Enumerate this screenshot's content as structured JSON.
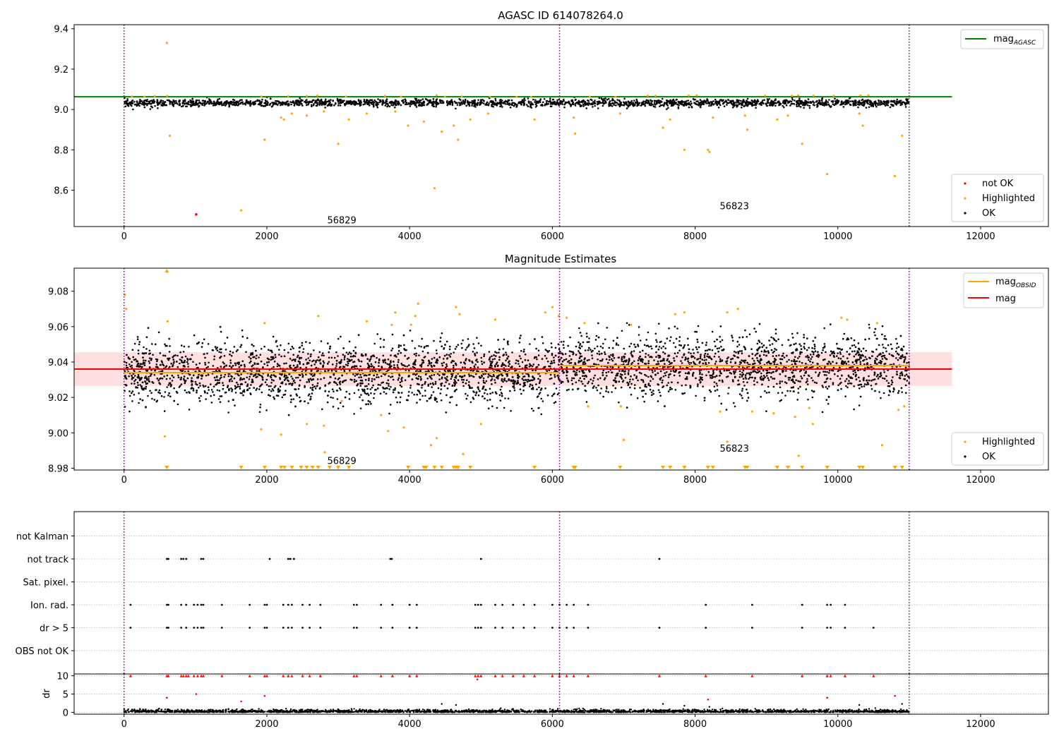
{
  "figure_title": "AGASC ID 614078264.0",
  "colors": {
    "ok": "#000000",
    "highlighted": "#ffa500",
    "not_ok": "#ff0000",
    "agasc_line": "#008000",
    "mag_line": "#ff0000",
    "obsid_line": "#ffa500",
    "band": "#ffc0c0",
    "vline": "#800080"
  },
  "chart_data": [
    {
      "id": "top",
      "type": "scatter",
      "title": "AGASC ID 614078264.0",
      "xlim": [
        -700,
        12950
      ],
      "ylim": [
        8.42,
        9.42
      ],
      "xticks": [
        0,
        2000,
        4000,
        6000,
        8000,
        10000,
        12000
      ],
      "xticklabels": [
        "0",
        "2000",
        "4000",
        "6000",
        "8000",
        "10000",
        "12000"
      ],
      "yticks": [
        8.6,
        8.8,
        9.0,
        9.2,
        9.4
      ],
      "yticklabels": [
        "8.6",
        "8.8",
        "9.0",
        "9.2",
        "9.4"
      ],
      "vlines": [
        0,
        6100,
        11000
      ],
      "obsid_labels": [
        {
          "text": "56829",
          "x": 3050,
          "y": 8.45
        },
        {
          "text": "56823",
          "x": 8550,
          "y": 8.52
        }
      ],
      "mag_agasc": 9.063,
      "mag_agasc_x": [
        -700,
        11600
      ],
      "ok_band": {
        "center": 9.032,
        "spread": 0.026
      },
      "highlighted": [
        [
          600,
          9.33
        ],
        [
          640,
          8.87
        ],
        [
          1970,
          8.85
        ],
        [
          1640,
          8.5
        ],
        [
          2200,
          8.96
        ],
        [
          2240,
          8.95
        ],
        [
          2350,
          8.98
        ],
        [
          2560,
          8.97
        ],
        [
          3000,
          8.83
        ],
        [
          3150,
          8.95
        ],
        [
          3800,
          8.99
        ],
        [
          3980,
          8.92
        ],
        [
          4200,
          8.94
        ],
        [
          4350,
          8.61
        ],
        [
          4450,
          8.89
        ],
        [
          4620,
          8.92
        ],
        [
          4680,
          8.85
        ],
        [
          4850,
          8.95
        ],
        [
          5750,
          8.95
        ],
        [
          6300,
          8.96
        ],
        [
          6320,
          8.88
        ],
        [
          6950,
          8.98
        ],
        [
          7550,
          8.91
        ],
        [
          7650,
          8.95
        ],
        [
          7850,
          8.8
        ],
        [
          8180,
          8.8
        ],
        [
          8200,
          8.79
        ],
        [
          8250,
          8.96
        ],
        [
          8700,
          8.97
        ],
        [
          8730,
          8.9
        ],
        [
          9150,
          8.95
        ],
        [
          9300,
          8.97
        ],
        [
          9500,
          8.83
        ],
        [
          9850,
          8.68
        ],
        [
          10300,
          8.98
        ],
        [
          10350,
          8.92
        ],
        [
          10800,
          8.67
        ],
        [
          10900,
          8.87
        ],
        [
          2800,
          8.99
        ],
        [
          5100,
          8.98
        ],
        [
          3400,
          8.98
        ]
      ],
      "not_ok": [
        [
          1010,
          8.48
        ]
      ],
      "legend_upper": [
        {
          "label": "mag",
          "sub": "AGASC"
        }
      ],
      "legend_lower": [
        {
          "label": "not OK"
        },
        {
          "label": "Highlighted"
        },
        {
          "label": "OK"
        }
      ]
    },
    {
      "id": "mid",
      "type": "scatter",
      "title": "Magnitude Estimates",
      "xlim": [
        -700,
        12950
      ],
      "ylim": [
        8.979,
        9.093
      ],
      "xticks": [
        0,
        2000,
        4000,
        6000,
        8000,
        10000,
        12000
      ],
      "xticklabels": [
        "0",
        "2000",
        "4000",
        "6000",
        "8000",
        "10000",
        "12000"
      ],
      "yticks": [
        8.98,
        9.0,
        9.02,
        9.04,
        9.06,
        9.08
      ],
      "yticklabels": [
        "8.98",
        "9.00",
        "9.02",
        "9.04",
        "9.06",
        "9.08"
      ],
      "vlines": [
        0,
        6100,
        11000
      ],
      "obsid_labels": [
        {
          "text": "56829",
          "x": 3050,
          "y": 8.984
        },
        {
          "text": "56823",
          "x": 8550,
          "y": 8.991
        }
      ],
      "mag": 9.036,
      "mag_x": [
        -700,
        11600
      ],
      "mag_band": [
        9.0265,
        9.0455
      ],
      "obsid_mags": [
        {
          "x0": 0,
          "x1": 6100,
          "y": 9.034
        },
        {
          "x0": 6100,
          "x1": 11000,
          "y": 9.038
        }
      ],
      "ok_band": {
        "center": 9.034,
        "spread": 0.012
      },
      "highlighted": [
        [
          10,
          9.078
        ],
        [
          30,
          9.07
        ],
        [
          600,
          9.091
        ],
        [
          610,
          9.063
        ],
        [
          570,
          8.998
        ],
        [
          1970,
          9.062
        ],
        [
          1920,
          9.002
        ],
        [
          2200,
          8.999
        ],
        [
          2560,
          9.005
        ],
        [
          2720,
          9.066
        ],
        [
          2810,
          8.989
        ],
        [
          2800,
          9.004
        ],
        [
          3050,
          9.018
        ],
        [
          3400,
          9.063
        ],
        [
          3600,
          9.01
        ],
        [
          3700,
          9.001
        ],
        [
          3750,
          9.061
        ],
        [
          3800,
          9.068
        ],
        [
          3920,
          9.003
        ],
        [
          4020,
          9.061
        ],
        [
          4080,
          9.066
        ],
        [
          4120,
          9.073
        ],
        [
          4300,
          8.993
        ],
        [
          4380,
          8.997
        ],
        [
          4650,
          9.071
        ],
        [
          4700,
          9.067
        ],
        [
          4750,
          8.988
        ],
        [
          5000,
          9.005
        ],
        [
          5200,
          9.064
        ],
        [
          5900,
          9.068
        ],
        [
          6000,
          9.071
        ],
        [
          6090,
          9.066
        ],
        [
          6200,
          9.065
        ],
        [
          6450,
          9.062
        ],
        [
          6500,
          9.015
        ],
        [
          6960,
          9.015
        ],
        [
          7000,
          8.996
        ],
        [
          7100,
          9.061
        ],
        [
          7720,
          9.067
        ],
        [
          7850,
          9.068
        ],
        [
          8350,
          9.012
        ],
        [
          8450,
          9.068
        ],
        [
          8450,
          8.995
        ],
        [
          8600,
          9.07
        ],
        [
          8800,
          9.012
        ],
        [
          9100,
          9.011
        ],
        [
          9400,
          9.009
        ],
        [
          9450,
          8.987
        ],
        [
          9600,
          9.014
        ],
        [
          9650,
          9.005
        ],
        [
          10050,
          9.065
        ],
        [
          10130,
          9.064
        ],
        [
          10550,
          9.062
        ],
        [
          10620,
          8.993
        ],
        [
          10850,
          9.013
        ],
        [
          10930,
          9.015
        ]
      ],
      "below": [
        600,
        1640,
        1970,
        2200,
        2250,
        2350,
        2480,
        2560,
        2640,
        2720,
        2880,
        3000,
        3150,
        3980,
        4200,
        4230,
        4350,
        4450,
        4620,
        4650,
        4680,
        4850,
        5750,
        6300,
        6320,
        6950,
        7550,
        7650,
        7850,
        8180,
        8250,
        8700,
        8730,
        9150,
        9300,
        9500,
        9850,
        10300,
        10350,
        10800,
        10900
      ],
      "legend_upper": [
        {
          "label": "mag",
          "sub": "OBSID"
        },
        {
          "label": "mag",
          "sub": ""
        }
      ],
      "legend_lower": [
        {
          "label": "Highlighted"
        },
        {
          "label": "OK"
        }
      ]
    },
    {
      "id": "flags",
      "type": "scatter",
      "xlim": [
        -700,
        12950
      ],
      "vlines": [
        0,
        6100,
        11000
      ],
      "categories": [
        "OBS not OK",
        "dr > 5",
        "Ion. rad.",
        "Sat. pixel.",
        "not track",
        "not Kalman"
      ],
      "flag_points": {
        "not track": [
          600,
          620,
          800,
          830,
          870,
          1080,
          1110,
          2040,
          2300,
          2330,
          2380,
          3730,
          3750,
          5000,
          7500
        ],
        "Ion. rad.": [
          90,
          600,
          620,
          800,
          870,
          980,
          1030,
          1080,
          1110,
          1370,
          1760,
          1970,
          2000,
          2230,
          2300,
          2350,
          2500,
          2600,
          2750,
          3220,
          3260,
          3600,
          3760,
          4000,
          4100,
          4920,
          4960,
          5000,
          5200,
          5300,
          5450,
          5600,
          5750,
          6000,
          6100,
          6200,
          6300,
          6500,
          8150,
          8800,
          9500,
          9850,
          9900,
          10100
        ],
        "dr > 5": [
          90,
          600,
          620,
          800,
          870,
          980,
          1030,
          1080,
          1110,
          1370,
          1760,
          1970,
          2000,
          2230,
          2300,
          2350,
          2500,
          2600,
          2750,
          3220,
          3260,
          3600,
          3760,
          4000,
          4100,
          4920,
          4960,
          5000,
          5200,
          5300,
          5450,
          5600,
          5750,
          6000,
          6100,
          6200,
          6300,
          6500,
          7500,
          8150,
          8800,
          9500,
          9850,
          9900,
          10100,
          10500
        ]
      }
    },
    {
      "id": "dr",
      "type": "scatter",
      "ylabel": "dr",
      "xlim": [
        -700,
        12950
      ],
      "ylim": [
        -0.5,
        10.5
      ],
      "yticks": [
        0,
        5,
        10
      ],
      "yticklabels": [
        "0",
        "5",
        "10"
      ],
      "xticks": [
        0,
        2000,
        4000,
        6000,
        8000,
        10000,
        12000
      ],
      "xticklabels": [
        "0",
        "2000",
        "4000",
        "6000",
        "8000",
        "10000",
        "12000"
      ],
      "vlines": [
        0,
        6100,
        11000
      ],
      "red_capped_x": [
        90,
        600,
        620,
        800,
        830,
        870,
        900,
        980,
        1030,
        1080,
        1110,
        1370,
        1760,
        1970,
        2000,
        2230,
        2300,
        2350,
        2500,
        2600,
        2750,
        3220,
        3260,
        3600,
        3760,
        4000,
        4100,
        4920,
        4960,
        5000,
        5200,
        5300,
        5450,
        5600,
        5750,
        6000,
        6100,
        6200,
        6300,
        6500,
        7500,
        8150,
        8800,
        9500,
        9850,
        9900,
        10100,
        10500
      ],
      "red_points": [
        [
          600,
          4
        ],
        [
          1010,
          5
        ],
        [
          1640,
          3
        ],
        [
          1970,
          4.5
        ],
        [
          8180,
          3.5
        ],
        [
          9850,
          4
        ],
        [
          10800,
          4.5
        ],
        [
          4950,
          9
        ]
      ],
      "black_points": [
        [
          4450,
          2.3
        ],
        [
          4650,
          2
        ],
        [
          7550,
          2.3
        ],
        [
          7850,
          1.8
        ],
        [
          8200,
          1.5
        ],
        [
          10300,
          2
        ],
        [
          10900,
          2.3
        ]
      ]
    }
  ]
}
